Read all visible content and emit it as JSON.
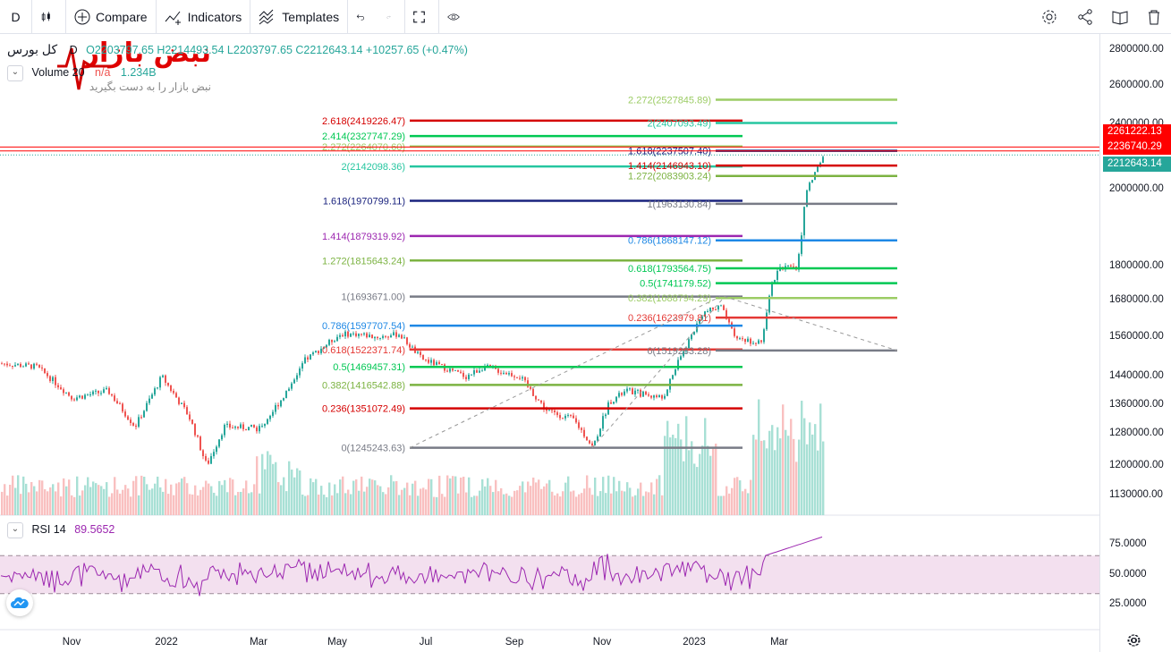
{
  "toolbar": {
    "interval": "D",
    "compare": "Compare",
    "indicators": "Indicators",
    "templates": "Templates"
  },
  "legend": {
    "symbol": "کل بورس",
    "interval": "D",
    "ohlc": "O2203797.65 H2214493.54 L2203797.65 C2212643.14 +10257.65 (+0.47%)",
    "volume_label": "Volume 20",
    "volume_na": "n/a",
    "volume_value": "1.234B",
    "rsi_label": "RSI 14",
    "rsi_value": "89.5652"
  },
  "watermark": {
    "title": "نبض بازار",
    "subtitle": "نبض بازار را به دست بگیرید"
  },
  "price_axis": [
    "2800000.00",
    "2600000.00",
    "2400000.00",
    "2000000.00",
    "1800000.00",
    "1680000.00",
    "1560000.00",
    "1440000.00",
    "1360000.00",
    "1280000.00",
    "1200000.00",
    "1130000.00"
  ],
  "price_axis_values": [
    2800000,
    2600000,
    2400000,
    2000000,
    1800000,
    1680000,
    1560000,
    1440000,
    1360000,
    1280000,
    1200000,
    1130000
  ],
  "price_tags": [
    {
      "text": "2261222.13",
      "color": "#ff0000"
    },
    {
      "text": "2236740.29",
      "color": "#ff0000"
    },
    {
      "text": "2212643.14",
      "color": "#26a69a"
    }
  ],
  "rsi_axis": [
    "75.0000",
    "50.0000",
    "25.0000"
  ],
  "rsi_axis_values": [
    75,
    50,
    25
  ],
  "time_axis": [
    "Nov",
    "2022",
    "Mar",
    "May",
    "Jul",
    "Sep",
    "Nov",
    "2023",
    "Mar"
  ],
  "fib_left": [
    {
      "text": "2.618(2419226.47)",
      "color": "#d50000",
      "price": 2419226.47
    },
    {
      "text": "2.414(2327747.29)",
      "color": "#00c853",
      "price": 2327747.29
    },
    {
      "text": "2.272(2264070.60)",
      "color": "#9ccc65",
      "price": 2264070.6
    },
    {
      "text": "2(2142098.36)",
      "color": "#26c6a0",
      "price": 2142098.36
    },
    {
      "text": "1.618(1970799.11)",
      "color": "#1a237e",
      "price": 1970799.11
    },
    {
      "text": "1.414(1879319.92)",
      "color": "#9c27b0",
      "price": 1879319.92
    },
    {
      "text": "1.272(1815643.24)",
      "color": "#7cb342",
      "price": 1815643.24
    },
    {
      "text": "1(1693671.00)",
      "color": "#787b86",
      "price": 1693671.0
    },
    {
      "text": "0.786(1597707.54)",
      "color": "#1e88e5",
      "price": 1597707.54
    },
    {
      "text": "0.618(1522371.74)",
      "color": "#e53935",
      "price": 1522371.74
    },
    {
      "text": "0.5(1469457.31)",
      "color": "#00c853",
      "price": 1469457.31
    },
    {
      "text": "0.382(1416542.88)",
      "color": "#7cb342",
      "price": 1416542.88
    },
    {
      "text": "0.236(1351072.49)",
      "color": "#d50000",
      "price": 1351072.49
    },
    {
      "text": "0(1245243.63)",
      "color": "#787b86",
      "price": 1245243.63
    }
  ],
  "fib_right": [
    {
      "text": "2.272(2527845.89)",
      "color": "#9ccc65",
      "price": 2527845.89
    },
    {
      "text": "2(2407093.49)",
      "color": "#26c6a0",
      "price": 2407093.49
    },
    {
      "text": "1.618(2237507.40)",
      "color": "#1a237e",
      "price": 2237507.4
    },
    {
      "text": "1.414(2146943.10)",
      "color": "#d50000",
      "price": 2146943.1
    },
    {
      "text": "1.272(2083903.24)",
      "color": "#7cb342",
      "price": 2083903.24
    },
    {
      "text": "1(1963130.84)",
      "color": "#787b86",
      "price": 1963130.84
    },
    {
      "text": "0.786(1868147.12)",
      "color": "#1e88e5",
      "price": 1868147.12
    },
    {
      "text": "0.618(1793564.75)",
      "color": "#00c853",
      "price": 1793564.75
    },
    {
      "text": "0.5(1741179.52)",
      "color": "#00c853",
      "price": 1741179.52
    },
    {
      "text": "0.382(1688794.29)",
      "color": "#9ccc65",
      "price": 1688794.29
    },
    {
      "text": "0.236(1623979.81)",
      "color": "#e53935",
      "price": 1623979.81
    },
    {
      "text": "0(1519283.28)",
      "color": "#787b86",
      "price": 1519283.28
    }
  ],
  "colors": {
    "up": "#26a69a",
    "down": "#ef5350",
    "rsi": "#9c27b0",
    "rsi_band": "#f3e0ef"
  }
}
